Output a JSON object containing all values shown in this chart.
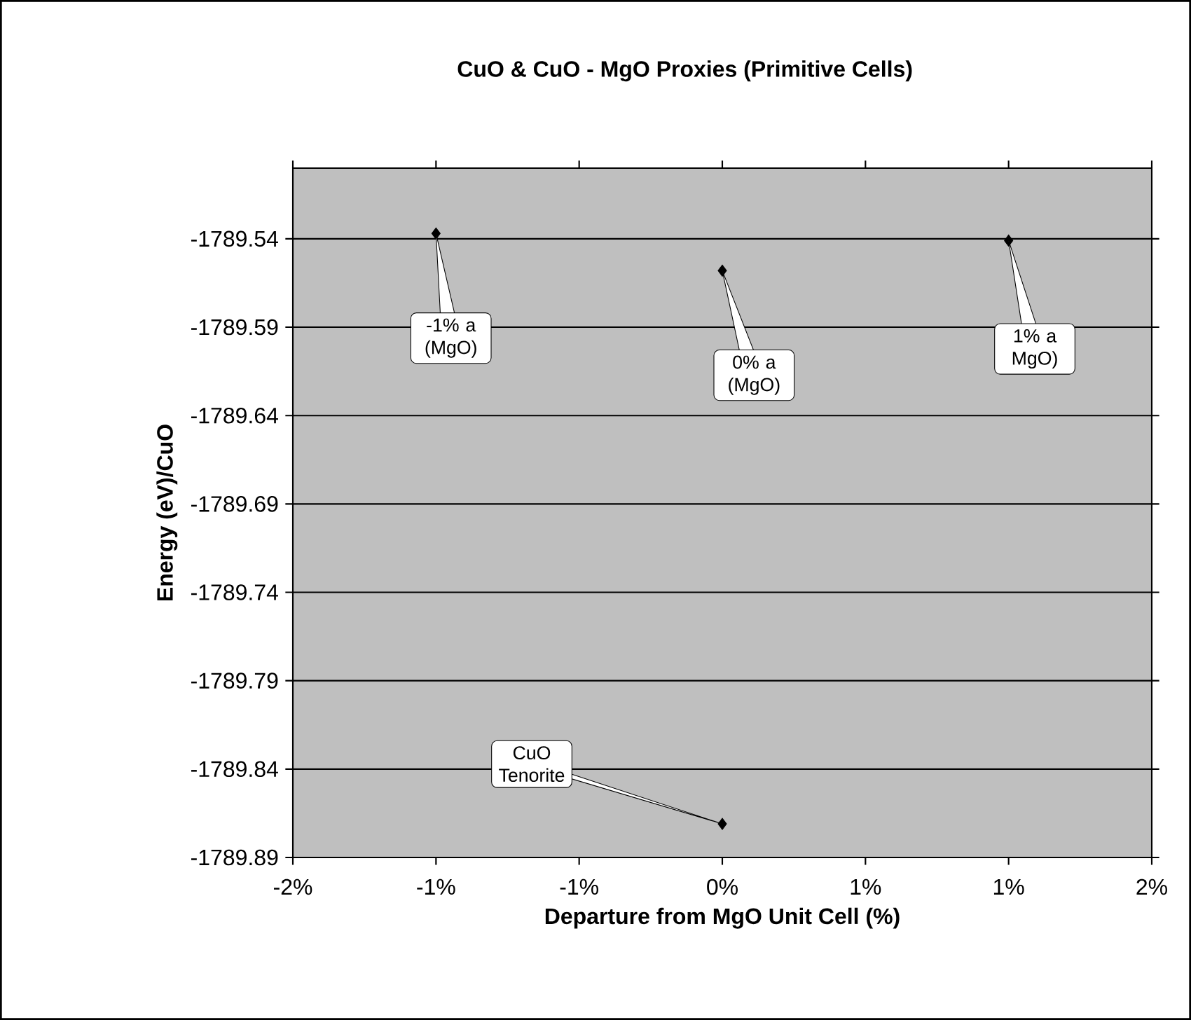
{
  "chart_data": {
    "type": "scatter",
    "title": "CuO & CuO - MgO Proxies (Primitive Cells)",
    "xlabel": "Departure from MgO Unit Cell (%)",
    "ylabel": "Energy (eV)/CuO",
    "x": [
      -0.01,
      0,
      0.01,
      0
    ],
    "values": [
      -1789.537,
      -1789.558,
      -1789.541,
      -1789.871
    ],
    "color": "#000000",
    "marker": "diamond",
    "grid": "y",
    "xlim": [
      -0.015,
      0.015
    ],
    "xticks": [
      {
        "value": -0.015,
        "label": "-2%"
      },
      {
        "value": -0.01,
        "label": "-1%"
      },
      {
        "value": -0.005,
        "label": "-1%"
      },
      {
        "value": 0,
        "label": "0%"
      },
      {
        "value": 0.005,
        "label": "1%"
      },
      {
        "value": 0.01,
        "label": "1%"
      },
      {
        "value": 0.015,
        "label": "2%"
      }
    ],
    "ylim": [
      -1789.89,
      -1789.5
    ],
    "yticks": [
      -1789.89,
      -1789.84,
      -1789.79,
      -1789.74,
      -1789.69,
      -1789.64,
      -1789.59,
      -1789.54
    ],
    "annotations": [
      {
        "text": "-1% a (MgO)",
        "x": -0.01,
        "y": -1789.537
      },
      {
        "text": "0% a (MgO)",
        "x": 0,
        "y": -1789.558
      },
      {
        "text": "1% a MgO)",
        "x": 0.01,
        "y": -1789.541
      },
      {
        "text": "CuO Tenorite",
        "x": 0,
        "y": -1789.871
      }
    ]
  }
}
